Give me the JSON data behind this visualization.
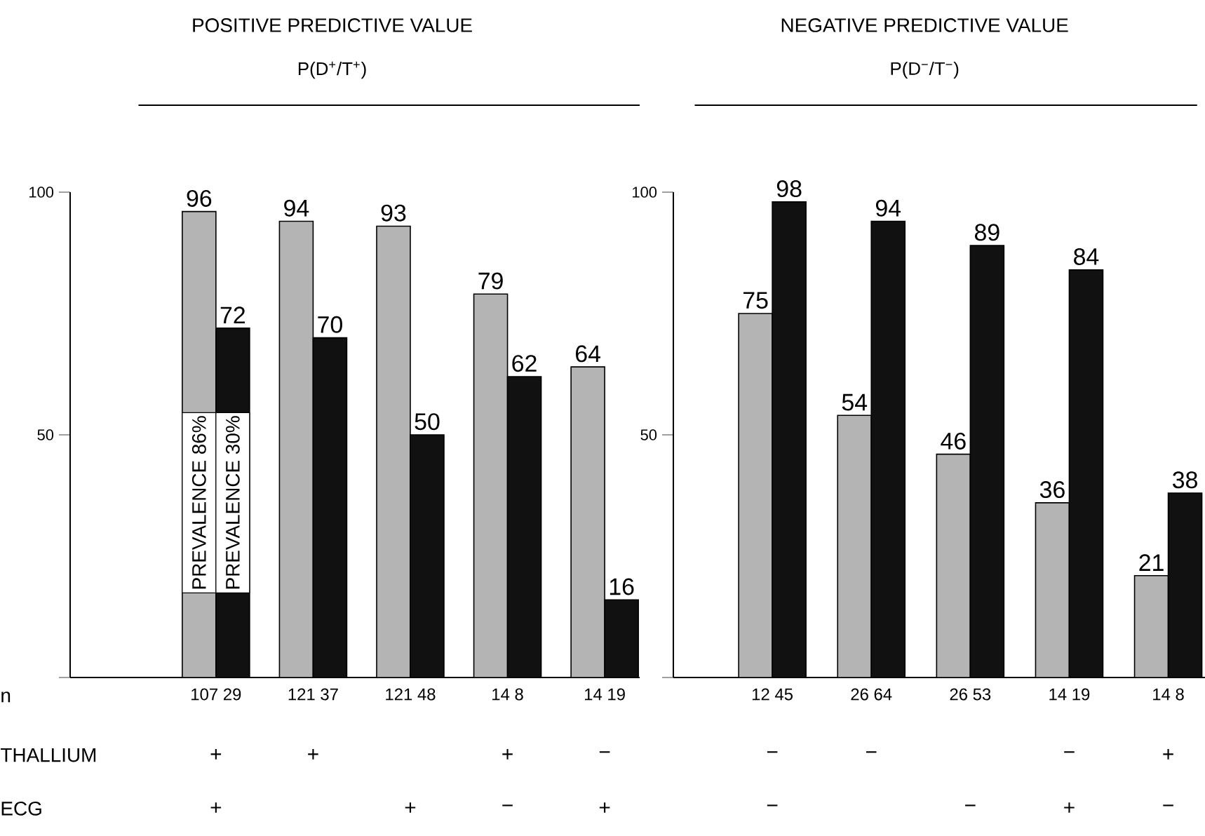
{
  "chart_data": [
    {
      "type": "bar",
      "title": "POSITIVE PREDICTIVE VALUE",
      "subtitle": "P(D$^{+}$/T$^{+}$)",
      "categories": [
        "107 29",
        "121 37",
        "121 48",
        "14 8",
        "14 19"
      ],
      "series": [
        {
          "color": "#b4b4b4",
          "values": [
            96,
            94,
            93,
            79,
            64
          ]
        },
        {
          "color": "#111111",
          "values": [
            72,
            70,
            50,
            62,
            16
          ]
        }
      ],
      "ylim": [
        0,
        100
      ],
      "yticks": [
        {
          "value": 0,
          "label": null
        },
        50,
        100
      ],
      "data_labels": true,
      "annotations": [
        "n",
        "THALLIUM",
        "ECG",
        "PREVALENCE 86%",
        "PREVALENCE 30%",
        "+",
        "+",
        "+",
        "−",
        "+",
        "+",
        "−",
        "+"
      ]
    },
    {
      "type": "bar",
      "title": "NEGATIVE PREDICTIVE VALUE",
      "subtitle": "P(D$^{−}$/T$^{−}$)",
      "categories": [
        "12 45",
        "26 64",
        "26 53",
        "14 19",
        "14 8"
      ],
      "series": [
        {
          "color": "#b4b4b4",
          "values": [
            75,
            54,
            46,
            36,
            21
          ]
        },
        {
          "color": "#111111",
          "values": [
            98,
            94,
            89,
            84,
            38
          ]
        }
      ],
      "ylim": [
        0,
        100
      ],
      "yticks": [
        {
          "value": 0,
          "label": null
        },
        50,
        100
      ],
      "data_labels": true,
      "annotations": [
        "−",
        "−",
        "−",
        "+",
        "−",
        "−",
        "+",
        "−"
      ]
    }
  ]
}
